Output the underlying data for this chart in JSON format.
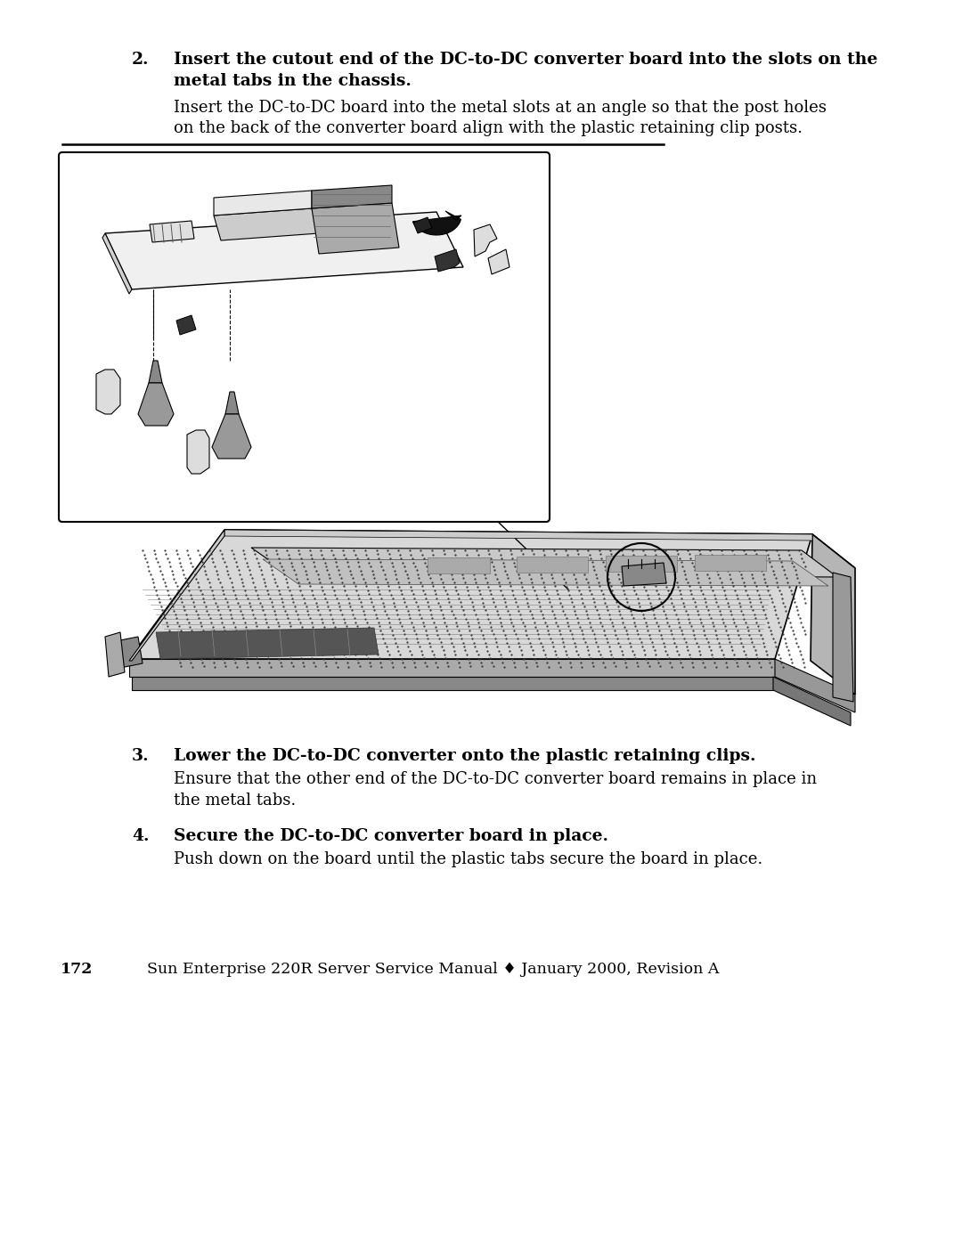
{
  "background_color": "#ffffff",
  "page_width": 10.8,
  "page_height": 13.97,
  "dpi": 100,
  "text_color": "#000000",
  "font_family": "DejaVu Serif",
  "step2_bold_line1": "Insert the cutout end of the DC-to-DC converter board into the slots on the",
  "step2_bold_line2": "metal tabs in the chassis.",
  "step2_body_line1": "Insert the DC-to-DC board into the metal slots at an angle so that the post holes",
  "step2_body_line2": "on the back of the converter board align with the plastic retaining clip posts.",
  "step3_bold": "Lower the DC-to-DC converter onto the plastic retaining clips.",
  "step3_body_line1": "Ensure that the other end of the DC-to-DC converter board remains in place in",
  "step3_body_line2": "the metal tabs.",
  "step4_bold": "Secure the DC-to-DC converter board in place.",
  "step4_body": "Push down on the board until the plastic tabs secure the board in place.",
  "footer_page": "172",
  "footer_text": "Sun Enterprise 220R Server Service Manual ♦ January 2000, Revision A"
}
